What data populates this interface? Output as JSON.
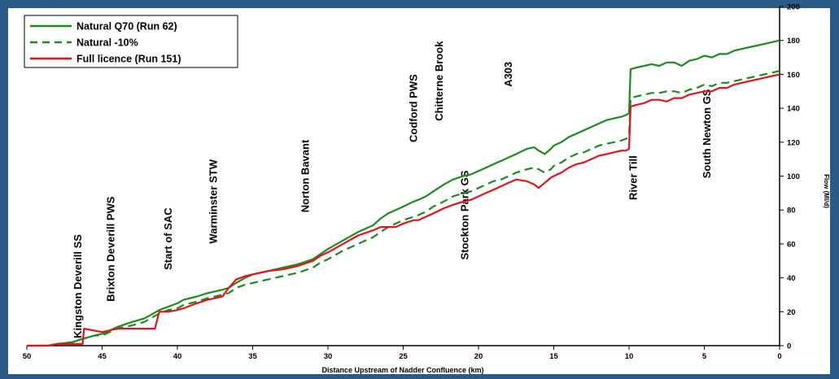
{
  "chart_data": {
    "type": "line",
    "title": "",
    "xlabel": "Distance Upstream of Nadder Confluence (km)",
    "ylabel": "Flow (Ml/d)",
    "xlim": [
      50,
      0
    ],
    "ylim": [
      0,
      200
    ],
    "x_ticks": [
      50,
      45,
      40,
      35,
      30,
      25,
      20,
      15,
      10,
      5,
      0
    ],
    "y_ticks": [
      0,
      20,
      40,
      60,
      80,
      100,
      120,
      140,
      160,
      180,
      200
    ],
    "grid": false,
    "legend_position": "top-left",
    "series": [
      {
        "name": "Natural Q70 (Run 62)",
        "color": "#1e8a1e",
        "style": "solid",
        "x": [
          50,
          48.6,
          48,
          47,
          46.3,
          45.5,
          45,
          44.5,
          44,
          43,
          42.2,
          41.6,
          41.2,
          40.6,
          40,
          39.6,
          38.7,
          38,
          37.5,
          37,
          36.6,
          36.1,
          35.5,
          35,
          34,
          33,
          32,
          31,
          30.5,
          30,
          29,
          28,
          27,
          26.5,
          26,
          25.5,
          25,
          24.3,
          24,
          23.5,
          23,
          22.3,
          21.7,
          21,
          20.5,
          20,
          19.5,
          19,
          18.5,
          18,
          17.5,
          16.8,
          16.3,
          16,
          15.6,
          15.2,
          15,
          14.5,
          14,
          13.5,
          13,
          12.5,
          12,
          11.5,
          11,
          10.5,
          10.2,
          10,
          9.9,
          9.5,
          9,
          8.5,
          8,
          7.5,
          7,
          6.5,
          6,
          5.5,
          5,
          4.5,
          4,
          3.5,
          3,
          2.5,
          2,
          1.5,
          1,
          0.5,
          0
        ],
        "y": [
          0,
          0,
          1,
          2,
          4,
          6,
          7,
          9,
          11,
          14,
          16,
          19,
          21,
          23,
          25,
          27,
          29,
          31,
          32,
          33,
          34,
          37,
          40,
          42,
          44,
          46,
          48,
          51,
          54,
          57,
          62,
          67,
          71,
          75,
          78,
          80,
          82,
          85,
          86,
          88,
          91,
          95,
          98,
          100,
          101,
          103,
          105,
          107,
          109,
          111,
          113,
          116,
          117,
          115,
          113,
          116,
          118,
          120,
          123,
          125,
          127,
          129,
          131,
          133,
          134,
          135,
          136,
          137,
          163,
          164,
          165,
          166,
          165,
          167,
          167,
          165,
          168,
          169,
          171,
          170,
          172,
          172,
          174,
          175,
          176,
          177,
          178,
          179,
          180
        ]
      },
      {
        "name": "Natural -10%",
        "color": "#1e8a1e",
        "style": "dashed",
        "x": [
          50,
          48.6,
          48,
          47,
          46.3,
          45.5,
          45,
          44.5,
          44,
          43,
          42.2,
          41.6,
          41.2,
          40.6,
          40,
          39.6,
          38.7,
          38,
          37.5,
          37,
          36.6,
          36.1,
          35.5,
          35,
          34,
          33,
          32,
          31,
          30.5,
          30,
          29,
          28,
          27,
          26.5,
          26,
          25.5,
          25,
          24.3,
          24,
          23.5,
          23,
          22.3,
          21.7,
          21,
          20.5,
          20,
          19.5,
          19,
          18.5,
          18,
          17.5,
          16.8,
          16.3,
          16,
          15.6,
          15.2,
          15,
          14.5,
          14,
          13.5,
          13,
          12.5,
          12,
          11.5,
          11,
          10.5,
          10.2,
          10,
          9.9,
          9.5,
          9,
          8.5,
          8,
          7.5,
          7,
          6.5,
          6,
          5.5,
          5,
          4.5,
          4,
          3.5,
          3,
          2.5,
          2,
          1.5,
          1,
          0.5,
          0
        ],
        "y": [
          0,
          0,
          1,
          2,
          4,
          6,
          6,
          8,
          10,
          12,
          14,
          17,
          19,
          21,
          22,
          24,
          26,
          28,
          29,
          30,
          31,
          34,
          36,
          37,
          39,
          41,
          43,
          46,
          49,
          51,
          56,
          60,
          64,
          67,
          70,
          72,
          74,
          76,
          77,
          79,
          82,
          85,
          88,
          90,
          91,
          93,
          95,
          97,
          98,
          100,
          102,
          104,
          105,
          104,
          102,
          104,
          106,
          108,
          111,
          113,
          114,
          116,
          118,
          119,
          120,
          121,
          122,
          123,
          146,
          147,
          148,
          149,
          149,
          150,
          150,
          149,
          151,
          152,
          154,
          153,
          155,
          155,
          156,
          157,
          158,
          159,
          160,
          161,
          162
        ]
      },
      {
        "name": "Full licence (Run 151)",
        "color": "#e0141e",
        "style": "solid",
        "x": [
          50,
          48.6,
          48,
          47,
          46.3,
          46.2,
          45,
          44.5,
          44,
          43,
          42.2,
          41.5,
          41.2,
          40.6,
          40,
          39.6,
          38.7,
          38,
          37.5,
          37,
          36.6,
          36.1,
          35.5,
          35,
          34,
          33,
          32,
          31,
          30.5,
          30,
          29,
          28,
          27,
          26.5,
          26,
          25.5,
          25,
          24.3,
          24,
          23.5,
          23,
          22.3,
          21.7,
          21,
          20.5,
          20,
          19.5,
          19,
          18.5,
          18,
          17.5,
          16.8,
          16.3,
          16,
          15.6,
          15.2,
          15,
          14.5,
          14,
          13.5,
          13,
          12.5,
          12,
          11.5,
          11,
          10.5,
          10.2,
          10,
          9.9,
          9.5,
          9,
          8.5,
          8,
          7.5,
          7,
          6.5,
          6,
          5.5,
          5,
          4.5,
          4,
          3.5,
          3,
          2.5,
          2,
          1.5,
          1,
          0.5,
          0
        ],
        "y": [
          0,
          0,
          1,
          1,
          1,
          10,
          8,
          9,
          10,
          10,
          10,
          10,
          20,
          20,
          21,
          22,
          25,
          27,
          28,
          29,
          34,
          39,
          41,
          42,
          44,
          45,
          47,
          50,
          53,
          55,
          60,
          65,
          68,
          70,
          70,
          70,
          72,
          74,
          74,
          76,
          78,
          81,
          83,
          85,
          86,
          88,
          90,
          92,
          94,
          96,
          98,
          97,
          95,
          93,
          96,
          99,
          100,
          102,
          105,
          107,
          108,
          110,
          112,
          113,
          114,
          115,
          115,
          116,
          141,
          142,
          143,
          145,
          145,
          144,
          146,
          146,
          148,
          149,
          150,
          150,
          152,
          152,
          154,
          155,
          156,
          157,
          158,
          159,
          160
        ]
      }
    ],
    "annotations": [
      {
        "text": "Kingston Deverill SS",
        "x": 46.6,
        "y": 35
      },
      {
        "text": "Brixton Deverill PWS",
        "x": 44.4,
        "y": 57
      },
      {
        "text": "Start of SAC",
        "x": 40.6,
        "y": 63
      },
      {
        "text": "Warminster STW",
        "x": 37.6,
        "y": 85
      },
      {
        "text": "Norton Bavant",
        "x": 31.5,
        "y": 100
      },
      {
        "text": "Codford PWS",
        "x": 24.3,
        "y": 140
      },
      {
        "text": "Stockton Park GS",
        "x": 20.9,
        "y": 77
      },
      {
        "text": "Chitterne Brook",
        "x": 22.6,
        "y": 156
      },
      {
        "text": "A303",
        "x": 18.0,
        "y": 160
      },
      {
        "text": "River Till",
        "x": 9.7,
        "y": 99
      },
      {
        "text": "South Newton GS",
        "x": 4.8,
        "y": 125
      }
    ]
  }
}
